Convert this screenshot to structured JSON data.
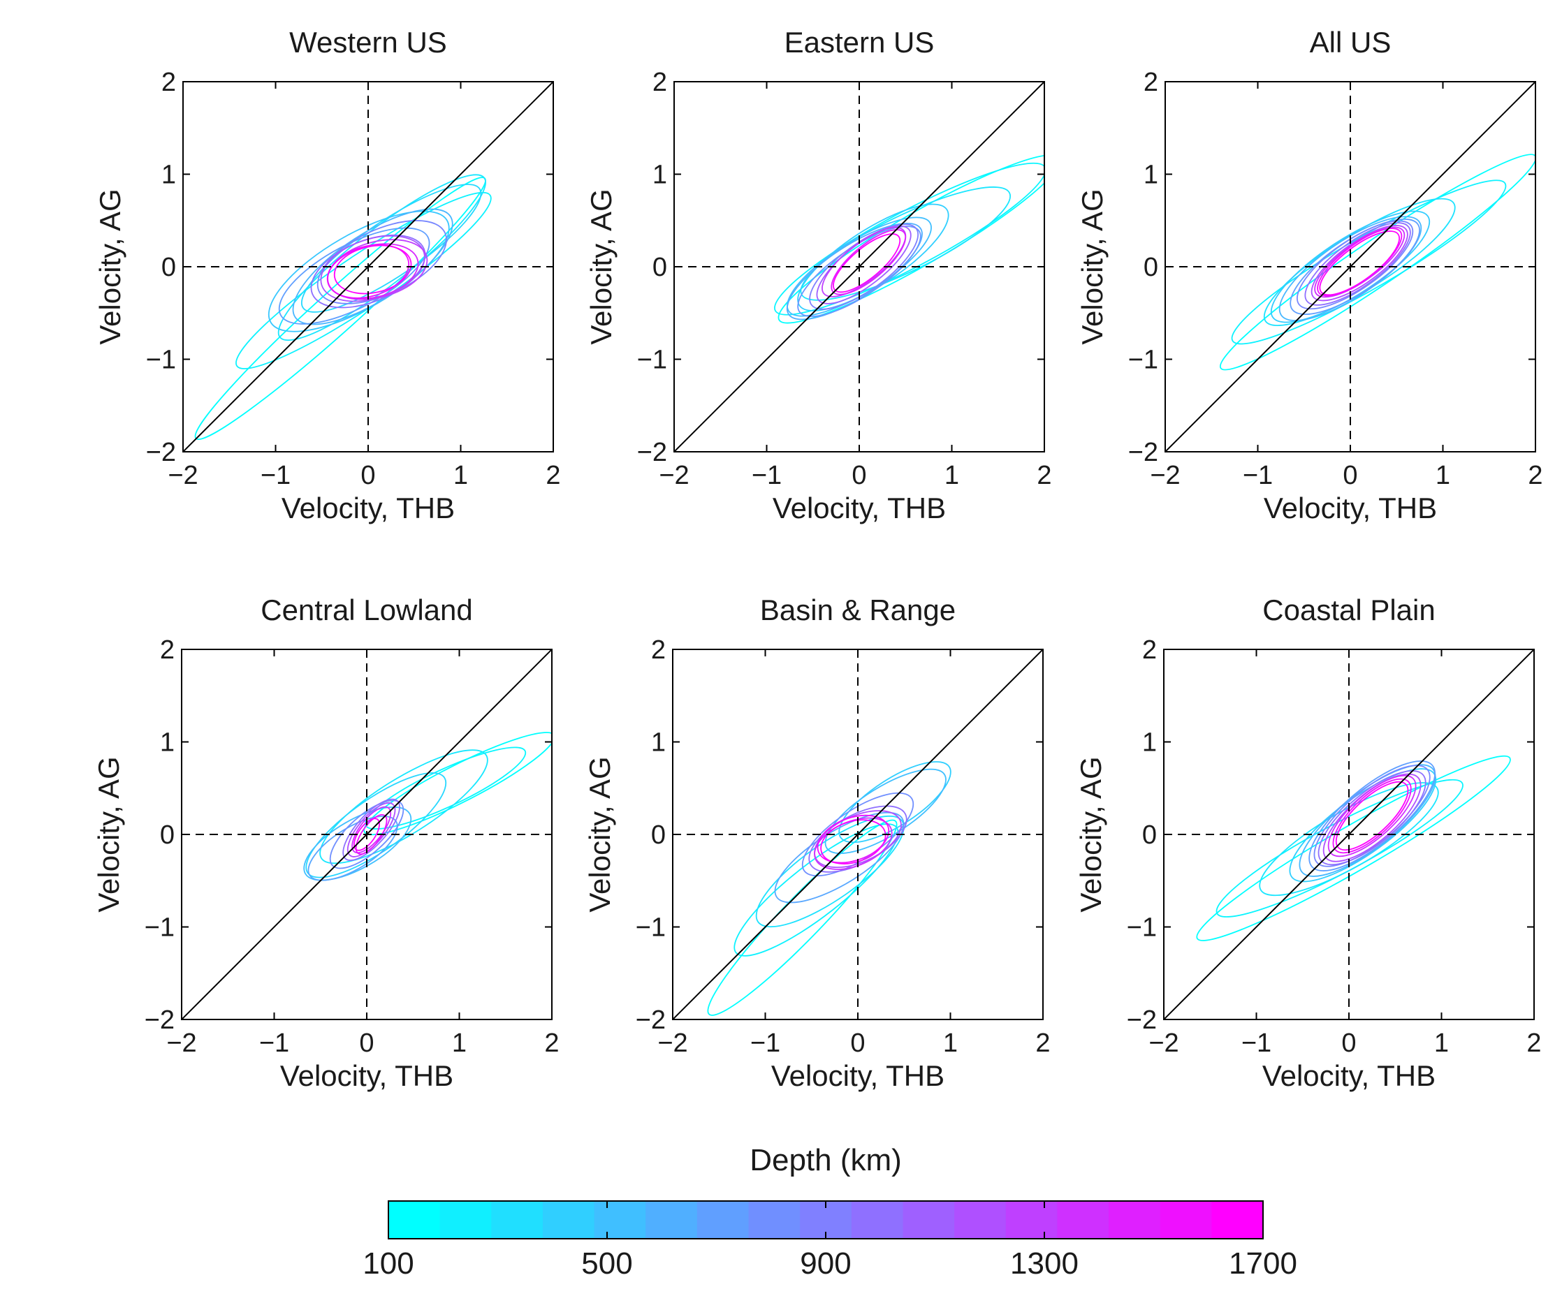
{
  "chart_data": [
    {
      "type": "ellipse-scatter",
      "title": "Western US",
      "xlabel": "Velocity, THB",
      "ylabel": "Velocity, AG",
      "xlim": [
        -2,
        2
      ],
      "ylim": [
        -2,
        2
      ],
      "xticks": [
        "−2",
        "−1",
        "0",
        "1",
        "2"
      ],
      "yticks": [
        "−2",
        "−1",
        "0",
        "1",
        "2"
      ],
      "reference_lines": [
        "y = x (solid)",
        "x = 0 (dashed)",
        "y = 0 (dashed)"
      ],
      "ellipses": [
        {
          "cx": -0.3,
          "cy": -0.45,
          "rx": 2.1,
          "ry": 0.22,
          "angle": 42,
          "depth": 100
        },
        {
          "cx": -0.05,
          "cy": -0.15,
          "rx": 1.65,
          "ry": 0.28,
          "angle": 34,
          "depth": 180
        },
        {
          "cx": 0.15,
          "cy": 0.1,
          "rx": 1.4,
          "ry": 0.3,
          "angle": 38,
          "depth": 260
        },
        {
          "cx": 0.25,
          "cy": 0.2,
          "rx": 1.15,
          "ry": 0.3,
          "angle": 34,
          "depth": 340
        },
        {
          "cx": -0.1,
          "cy": -0.05,
          "rx": 1.1,
          "ry": 0.4,
          "angle": 30,
          "depth": 450
        },
        {
          "cx": 0.05,
          "cy": 0.0,
          "rx": 1.0,
          "ry": 0.36,
          "angle": 33,
          "depth": 560
        },
        {
          "cx": -0.15,
          "cy": -0.1,
          "rx": 0.9,
          "ry": 0.34,
          "angle": 28,
          "depth": 700
        },
        {
          "cx": 0.15,
          "cy": 0.05,
          "rx": 0.75,
          "ry": 0.35,
          "angle": 25,
          "depth": 850
        },
        {
          "cx": 0.0,
          "cy": -0.05,
          "rx": 0.65,
          "ry": 0.33,
          "angle": 22,
          "depth": 1000
        },
        {
          "cx": 0.05,
          "cy": -0.02,
          "rx": 0.58,
          "ry": 0.32,
          "angle": 18,
          "depth": 1150
        },
        {
          "cx": 0.1,
          "cy": -0.03,
          "rx": 0.55,
          "ry": 0.3,
          "angle": 15,
          "depth": 1300
        },
        {
          "cx": 0.05,
          "cy": -0.05,
          "rx": 0.5,
          "ry": 0.28,
          "angle": 14,
          "depth": 1450
        },
        {
          "cx": 0.0,
          "cy": -0.05,
          "rx": 0.45,
          "ry": 0.27,
          "angle": 16,
          "depth": 1600
        },
        {
          "cx": 0.05,
          "cy": -0.03,
          "rx": 0.42,
          "ry": 0.25,
          "angle": 12,
          "depth": 1700
        }
      ]
    },
    {
      "type": "ellipse-scatter",
      "title": "Eastern US",
      "xlabel": "Velocity, THB",
      "ylabel": "Velocity, AG",
      "xlim": [
        -2,
        2
      ],
      "ylim": [
        -2,
        2
      ],
      "xticks": [
        "−2",
        "−1",
        "0",
        "1",
        "2"
      ],
      "yticks": [
        "−2",
        "−1",
        "0",
        "1",
        "2"
      ],
      "reference_lines": [
        "y = x (solid)",
        "x = 0 (dashed)",
        "y = 0 (dashed)"
      ],
      "ellipses": [
        {
          "cx": 0.65,
          "cy": 0.3,
          "rx": 1.75,
          "ry": 0.28,
          "angle": 30,
          "depth": 100
        },
        {
          "cx": 0.55,
          "cy": 0.3,
          "rx": 1.65,
          "ry": 0.3,
          "angle": 28,
          "depth": 160
        },
        {
          "cx": 0.5,
          "cy": 0.25,
          "rx": 1.25,
          "ry": 0.3,
          "angle": 26,
          "depth": 260
        },
        {
          "cx": 0.15,
          "cy": 0.1,
          "rx": 0.95,
          "ry": 0.3,
          "angle": 33,
          "depth": 400
        },
        {
          "cx": 0.0,
          "cy": 0.0,
          "rx": 0.9,
          "ry": 0.28,
          "angle": 32,
          "depth": 500
        },
        {
          "cx": -0.05,
          "cy": -0.05,
          "rx": 0.85,
          "ry": 0.28,
          "angle": 33,
          "depth": 600
        },
        {
          "cx": 0.0,
          "cy": -0.05,
          "rx": 0.78,
          "ry": 0.26,
          "angle": 34,
          "depth": 750
        },
        {
          "cx": 0.05,
          "cy": 0.0,
          "rx": 0.7,
          "ry": 0.25,
          "angle": 36,
          "depth": 900
        },
        {
          "cx": 0.05,
          "cy": 0.02,
          "rx": 0.62,
          "ry": 0.22,
          "angle": 38,
          "depth": 1100
        },
        {
          "cx": 0.05,
          "cy": 0.05,
          "rx": 0.55,
          "ry": 0.2,
          "angle": 38,
          "depth": 1300
        },
        {
          "cx": 0.1,
          "cy": 0.05,
          "rx": 0.5,
          "ry": 0.18,
          "angle": 40,
          "depth": 1500
        },
        {
          "cx": 0.08,
          "cy": 0.04,
          "rx": 0.45,
          "ry": 0.16,
          "angle": 40,
          "depth": 1700
        }
      ]
    },
    {
      "type": "ellipse-scatter",
      "title": "All US",
      "xlabel": "Velocity, THB",
      "ylabel": "Velocity, AG",
      "xlim": [
        -2,
        2
      ],
      "ylim": [
        -2,
        2
      ],
      "xticks": [
        "−2",
        "−1",
        "0",
        "1",
        "2"
      ],
      "yticks": [
        "−2",
        "−1",
        "0",
        "1",
        "2"
      ],
      "reference_lines": [
        "y = x (solid)",
        "x = 0 (dashed)",
        "y = 0 (dashed)"
      ],
      "ellipses": [
        {
          "cx": 0.3,
          "cy": 0.05,
          "rx": 2.05,
          "ry": 0.24,
          "angle": 34,
          "depth": 100
        },
        {
          "cx": 0.2,
          "cy": 0.05,
          "rx": 1.7,
          "ry": 0.28,
          "angle": 30,
          "depth": 180
        },
        {
          "cx": 0.1,
          "cy": 0.05,
          "rx": 1.2,
          "ry": 0.3,
          "angle": 32,
          "depth": 280
        },
        {
          "cx": 0.0,
          "cy": 0.0,
          "rx": 1.0,
          "ry": 0.3,
          "angle": 33,
          "depth": 420
        },
        {
          "cx": 0.0,
          "cy": -0.02,
          "rx": 0.9,
          "ry": 0.3,
          "angle": 34,
          "depth": 550
        },
        {
          "cx": 0.05,
          "cy": 0.0,
          "rx": 0.82,
          "ry": 0.28,
          "angle": 34,
          "depth": 700
        },
        {
          "cx": 0.05,
          "cy": 0.02,
          "rx": 0.74,
          "ry": 0.26,
          "angle": 35,
          "depth": 850
        },
        {
          "cx": 0.08,
          "cy": 0.03,
          "rx": 0.68,
          "ry": 0.24,
          "angle": 36,
          "depth": 1000
        },
        {
          "cx": 0.1,
          "cy": 0.04,
          "rx": 0.62,
          "ry": 0.22,
          "angle": 36,
          "depth": 1200
        },
        {
          "cx": 0.1,
          "cy": 0.05,
          "rx": 0.58,
          "ry": 0.2,
          "angle": 36,
          "depth": 1400
        },
        {
          "cx": 0.1,
          "cy": 0.05,
          "rx": 0.55,
          "ry": 0.19,
          "angle": 37,
          "depth": 1600
        },
        {
          "cx": 0.1,
          "cy": 0.04,
          "rx": 0.52,
          "ry": 0.18,
          "angle": 37,
          "depth": 1700
        }
      ]
    },
    {
      "type": "ellipse-scatter",
      "title": "Central Lowland",
      "xlabel": "Velocity, THB",
      "ylabel": "Velocity, AG",
      "xlim": [
        -2,
        2
      ],
      "ylim": [
        -2,
        2
      ],
      "xticks": [
        "−2",
        "−1",
        "0",
        "1",
        "2"
      ],
      "yticks": [
        "−2",
        "−1",
        "0",
        "1",
        "2"
      ],
      "reference_lines": [
        "y = x (solid)",
        "x = 0 (dashed)",
        "y = 0 (dashed)"
      ],
      "ellipses": [
        {
          "cx": 1.0,
          "cy": 0.55,
          "rx": 1.15,
          "ry": 0.2,
          "angle": 27,
          "depth": 100
        },
        {
          "cx": 0.85,
          "cy": 0.5,
          "rx": 0.95,
          "ry": 0.2,
          "angle": 25,
          "depth": 150
        },
        {
          "cx": 0.4,
          "cy": 0.3,
          "rx": 1.05,
          "ry": 0.3,
          "angle": 32,
          "depth": 250
        },
        {
          "cx": 0.1,
          "cy": 0.1,
          "rx": 0.9,
          "ry": 0.28,
          "angle": 35,
          "depth": 350
        },
        {
          "cx": -0.1,
          "cy": -0.1,
          "rx": 0.65,
          "ry": 0.26,
          "angle": 30,
          "depth": 500
        },
        {
          "cx": -0.15,
          "cy": -0.15,
          "rx": 0.55,
          "ry": 0.22,
          "angle": 32,
          "depth": 650
        },
        {
          "cx": 0.0,
          "cy": 0.0,
          "rx": 0.5,
          "ry": 0.2,
          "angle": 42,
          "depth": 800
        },
        {
          "cx": 0.05,
          "cy": 0.05,
          "rx": 0.42,
          "ry": 0.16,
          "angle": 48,
          "depth": 1000
        },
        {
          "cx": 0.05,
          "cy": 0.05,
          "rx": 0.36,
          "ry": 0.14,
          "angle": 50,
          "depth": 1200
        },
        {
          "cx": 0.05,
          "cy": 0.05,
          "rx": 0.3,
          "ry": 0.12,
          "angle": 52,
          "depth": 1400
        },
        {
          "cx": 0.05,
          "cy": 0.0,
          "rx": 0.25,
          "ry": 0.1,
          "angle": 55,
          "depth": 1600
        },
        {
          "cx": 0.0,
          "cy": 0.0,
          "rx": 0.2,
          "ry": 0.09,
          "angle": 55,
          "depth": 1700
        }
      ]
    },
    {
      "type": "ellipse-scatter",
      "title": "Basin & Range",
      "xlabel": "Velocity, THB",
      "ylabel": "Velocity, AG",
      "xlim": [
        -2,
        2
      ],
      "ylim": [
        -2,
        2
      ],
      "xticks": [
        "−2",
        "−1",
        "0",
        "1",
        "2"
      ],
      "yticks": [
        "−2",
        "−1",
        "0",
        "1",
        "2"
      ],
      "reference_lines": [
        "y = x (solid)",
        "x = 0 (dashed)",
        "y = 0 (dashed)"
      ],
      "ellipses": [
        {
          "cx": -0.6,
          "cy": -0.9,
          "rx": 1.45,
          "ry": 0.22,
          "angle": 46,
          "depth": 100
        },
        {
          "cx": -0.45,
          "cy": -0.6,
          "rx": 1.1,
          "ry": 0.28,
          "angle": 38,
          "depth": 180
        },
        {
          "cx": -0.3,
          "cy": -0.4,
          "rx": 0.95,
          "ry": 0.3,
          "angle": 35,
          "depth": 280
        },
        {
          "cx": 0.4,
          "cy": 0.35,
          "rx": 0.7,
          "ry": 0.25,
          "angle": 33,
          "depth": 400
        },
        {
          "cx": 0.3,
          "cy": 0.25,
          "rx": 0.75,
          "ry": 0.26,
          "angle": 32,
          "depth": 500
        },
        {
          "cx": -0.2,
          "cy": -0.25,
          "rx": 0.8,
          "ry": 0.28,
          "angle": 32,
          "depth": 650
        },
        {
          "cx": 0.0,
          "cy": 0.0,
          "rx": 0.7,
          "ry": 0.26,
          "angle": 34,
          "depth": 800
        },
        {
          "cx": 0.0,
          "cy": -0.05,
          "rx": 0.58,
          "ry": 0.26,
          "angle": 28,
          "depth": 1000
        },
        {
          "cx": 0.0,
          "cy": -0.05,
          "rx": 0.5,
          "ry": 0.25,
          "angle": 24,
          "depth": 1200
        },
        {
          "cx": -0.05,
          "cy": -0.1,
          "rx": 0.44,
          "ry": 0.24,
          "angle": 22,
          "depth": 1400
        },
        {
          "cx": -0.05,
          "cy": -0.05,
          "rx": 0.4,
          "ry": 0.23,
          "angle": 20,
          "depth": 1600
        },
        {
          "cx": -0.05,
          "cy": -0.08,
          "rx": 0.36,
          "ry": 0.22,
          "angle": 18,
          "depth": 1700
        }
      ]
    },
    {
      "type": "ellipse-scatter",
      "title": "Coastal Plain",
      "xlabel": "Velocity, THB",
      "ylabel": "Velocity, AG",
      "xlim": [
        -2,
        2
      ],
      "ylim": [
        -2,
        2
      ],
      "xticks": [
        "−2",
        "−1",
        "0",
        "1",
        "2"
      ],
      "yticks": [
        "−2",
        "−1",
        "0",
        "1",
        "2"
      ],
      "reference_lines": [
        "y = x (solid)",
        "x = 0 (dashed)",
        "y = 0 (dashed)"
      ],
      "ellipses": [
        {
          "cx": 0.05,
          "cy": -0.15,
          "rx": 1.95,
          "ry": 0.24,
          "angle": 30,
          "depth": 100
        },
        {
          "cx": -0.1,
          "cy": -0.15,
          "rx": 1.5,
          "ry": 0.26,
          "angle": 28,
          "depth": 160
        },
        {
          "cx": 0.0,
          "cy": -0.05,
          "rx": 1.1,
          "ry": 0.3,
          "angle": 30,
          "depth": 260
        },
        {
          "cx": 0.15,
          "cy": 0.1,
          "rx": 0.95,
          "ry": 0.3,
          "angle": 36,
          "depth": 400
        },
        {
          "cx": 0.2,
          "cy": 0.15,
          "rx": 0.9,
          "ry": 0.3,
          "angle": 38,
          "depth": 550
        },
        {
          "cx": 0.25,
          "cy": 0.2,
          "rx": 0.85,
          "ry": 0.3,
          "angle": 40,
          "depth": 700
        },
        {
          "cx": 0.25,
          "cy": 0.2,
          "rx": 0.78,
          "ry": 0.28,
          "angle": 40,
          "depth": 850
        },
        {
          "cx": 0.25,
          "cy": 0.18,
          "rx": 0.72,
          "ry": 0.27,
          "angle": 40,
          "depth": 1000
        },
        {
          "cx": 0.25,
          "cy": 0.18,
          "rx": 0.66,
          "ry": 0.25,
          "angle": 41,
          "depth": 1200
        },
        {
          "cx": 0.25,
          "cy": 0.2,
          "rx": 0.6,
          "ry": 0.23,
          "angle": 42,
          "depth": 1400
        },
        {
          "cx": 0.25,
          "cy": 0.2,
          "rx": 0.54,
          "ry": 0.21,
          "angle": 43,
          "depth": 1600
        },
        {
          "cx": 0.25,
          "cy": 0.2,
          "rx": 0.5,
          "ry": 0.19,
          "angle": 43,
          "depth": 1700
        }
      ]
    }
  ],
  "colorbar": {
    "label": "Depth (km)",
    "min": 100,
    "max": 1700,
    "ticks": [
      100,
      500,
      900,
      1300,
      1700
    ],
    "tick_labels": [
      "100",
      "500",
      "900",
      "1300",
      "1700"
    ],
    "color_start": "#00ffff",
    "color_end": "#ff00ff",
    "steps": 17
  }
}
